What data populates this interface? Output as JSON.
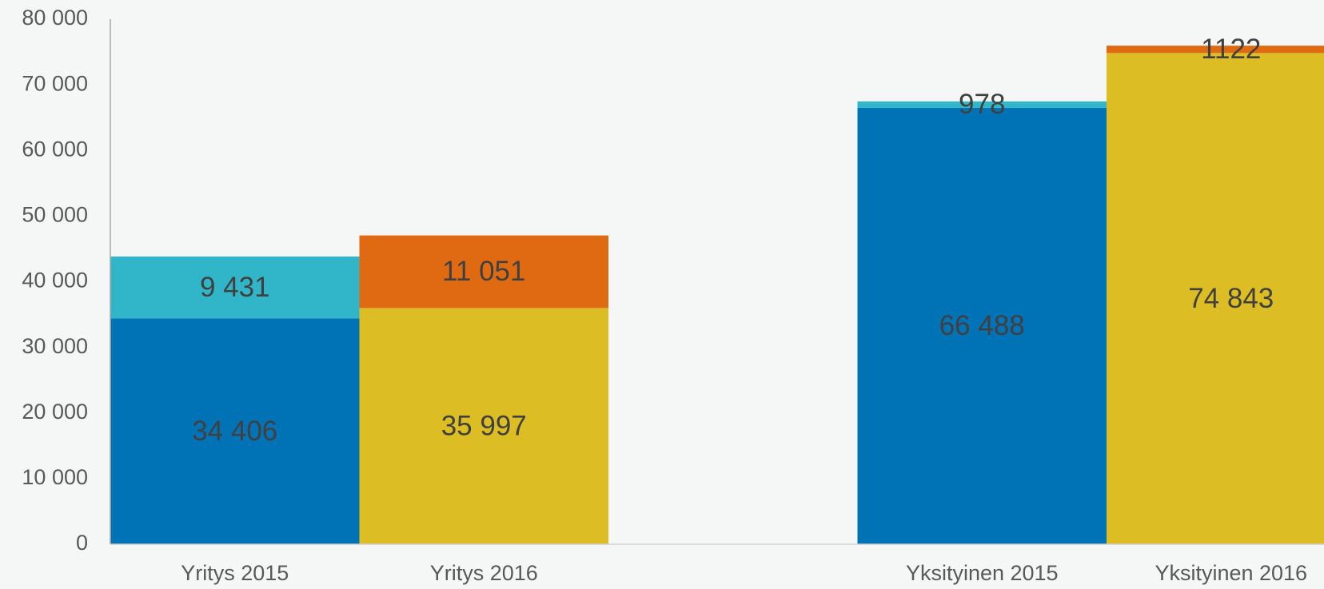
{
  "chart_data": {
    "type": "stacked-bar",
    "categories": [
      "Yritys 2015",
      "Yritys 2016",
      null,
      "Yksityinen 2015",
      "Yksityinen 2016"
    ],
    "series": [
      {
        "color": "#0072b6",
        "values": [
          34406,
          null,
          null,
          66488,
          null
        ],
        "value_labels": [
          "34 406",
          null,
          null,
          "66 488",
          null
        ]
      },
      {
        "color": "#31b6c9",
        "values": [
          9431,
          null,
          null,
          978,
          null
        ],
        "value_labels": [
          "9 431",
          null,
          null,
          null,
          null
        ]
      },
      {
        "color": "#dcbd24",
        "values": [
          null,
          35997,
          null,
          null,
          74843
        ],
        "value_labels": [
          null,
          "35 997",
          null,
          null,
          "74 843"
        ]
      },
      {
        "color": "#e06a12",
        "values": [
          null,
          11051,
          null,
          null,
          1122
        ],
        "value_labels": [
          null,
          "11 051",
          null,
          null,
          null
        ]
      }
    ],
    "ylim": [
      0,
      80000
    ],
    "yticks": [
      0,
      {
        "value": 10000,
        "label": "10 000"
      },
      {
        "value": 20000,
        "label": "20 000"
      },
      {
        "value": 30000,
        "label": "30 000"
      },
      {
        "value": 40000,
        "label": "40 000"
      },
      {
        "value": 50000,
        "label": "50 000"
      },
      {
        "value": 60000,
        "label": "60 000"
      },
      {
        "value": 70000,
        "label": "70 000"
      },
      {
        "value": 80000,
        "label": "80 000"
      }
    ],
    "grid": false
  }
}
